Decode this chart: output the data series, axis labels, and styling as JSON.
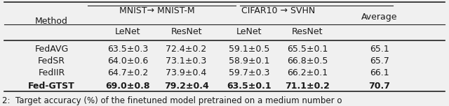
{
  "methods": [
    "FedAVG",
    "FedSR",
    "FedIIR",
    "Fed-GTST"
  ],
  "bold_row": 3,
  "data": [
    [
      "63.5±0.3",
      "72.4±0.2",
      "59.1±0.5",
      "65.5±0.1",
      "65.1"
    ],
    [
      "64.0±0.6",
      "73.1±0.3",
      "58.9±0.1",
      "66.8±0.5",
      "65.7"
    ],
    [
      "64.7±0.2",
      "73.9±0.4",
      "59.7±0.3",
      "66.2±0.1",
      "66.1"
    ],
    [
      "69.0±0.8",
      "79.2±0.4",
      "63.5±0.1",
      "71.1±0.2",
      "70.7"
    ]
  ],
  "group1_label": "MNIST→ MNIST-M",
  "group2_label": "CIFAR10 → SVHN",
  "avg_label": "Average",
  "method_label": "Method",
  "subcol_labels": [
    "LeNet",
    "ResNet",
    "LeNet",
    "ResNet"
  ],
  "caption": "2:  Target accuracy (%) of the finetuned model pretrained on a medium number o",
  "bg_color": "#f0f0f0",
  "text_color": "#1a1a1a",
  "font_size": 9.0
}
